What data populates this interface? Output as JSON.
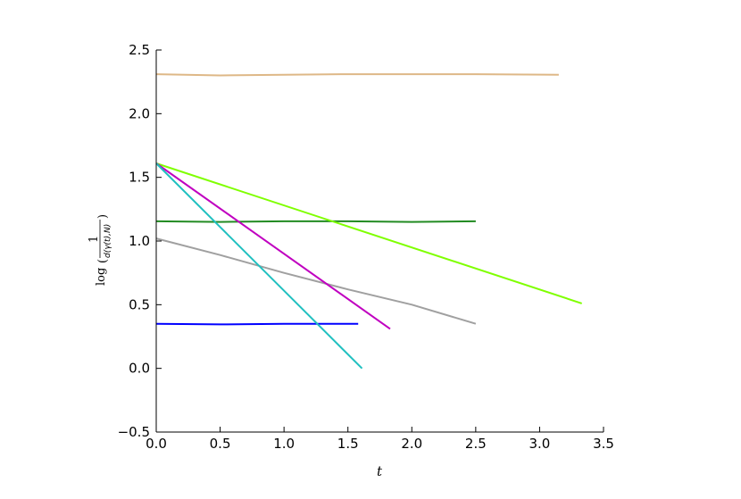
{
  "chart_data": {
    "type": "line",
    "title": "",
    "xlabel": "t",
    "ylabel": "log(1/d(γ(t),N))",
    "xlim": [
      0.0,
      3.5
    ],
    "ylim": [
      -0.5,
      2.5
    ],
    "xticks": [
      "0.0",
      "0.5",
      "1.0",
      "1.5",
      "2.0",
      "2.5",
      "3.0",
      "3.5"
    ],
    "yticks": [
      "−0.5",
      "0.0",
      "0.5",
      "1.0",
      "1.5",
      "2.0",
      "2.5"
    ],
    "xtick_values": [
      0.0,
      0.5,
      1.0,
      1.5,
      2.0,
      2.5,
      3.0,
      3.5
    ],
    "ytick_values": [
      -0.5,
      0.0,
      0.5,
      1.0,
      1.5,
      2.0,
      2.5
    ],
    "grid": false,
    "legend": "none",
    "series": [
      {
        "color": "#deb887",
        "x": [
          0.0,
          0.5,
          1.0,
          1.5,
          2.0,
          2.5,
          3.15
        ],
        "y": [
          2.31,
          2.3,
          2.305,
          2.31,
          2.31,
          2.31,
          2.305
        ]
      },
      {
        "color": "#228b22",
        "x": [
          0.0,
          0.5,
          1.0,
          1.5,
          2.0,
          2.5
        ],
        "y": [
          1.155,
          1.15,
          1.155,
          1.155,
          1.15,
          1.155
        ]
      },
      {
        "color": "#0000ff",
        "x": [
          0.0,
          0.5,
          1.0,
          1.58
        ],
        "y": [
          0.35,
          0.345,
          0.35,
          0.35
        ]
      },
      {
        "color": "#a0a0a0",
        "x": [
          0.0,
          0.5,
          1.0,
          1.5,
          2.0,
          2.5
        ],
        "y": [
          1.02,
          0.89,
          0.75,
          0.62,
          0.5,
          0.35
        ]
      },
      {
        "color": "#7fff00",
        "x": [
          0.0,
          3.33
        ],
        "y": [
          1.61,
          0.51
        ]
      },
      {
        "color": "#c000c0",
        "x": [
          0.0,
          1.83
        ],
        "y": [
          1.61,
          0.31
        ]
      },
      {
        "color": "#20c0c0",
        "x": [
          0.0,
          1.61
        ],
        "y": [
          1.61,
          0.0
        ]
      }
    ]
  }
}
